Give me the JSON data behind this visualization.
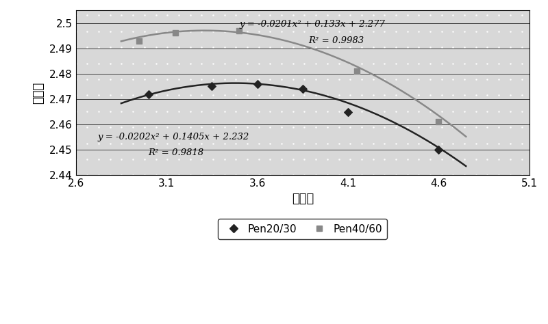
{
  "xlim": [
    2.6,
    5.1
  ],
  "ylim": [
    2.44,
    2.505
  ],
  "yticks": [
    2.44,
    2.45,
    2.46,
    2.47,
    2.48,
    2.49,
    2.5
  ],
  "xticks": [
    2.6,
    3.1,
    3.6,
    4.1,
    4.6,
    5.1
  ],
  "xlabel": "油石比",
  "ylabel": "干密度",
  "pen2030_x": [
    3.0,
    3.35,
    3.6,
    3.85,
    4.1,
    4.6
  ],
  "pen2030_y": [
    2.472,
    2.475,
    2.476,
    2.474,
    2.465,
    2.45
  ],
  "pen4060_x": [
    2.95,
    3.15,
    3.5,
    4.15,
    4.6
  ],
  "pen4060_y": [
    2.493,
    2.496,
    2.497,
    2.481,
    2.461
  ],
  "eq_pen2030": "y = -0.0202x² + 0.1405x + 2.232",
  "r2_pen2030": "R² = 0.9818",
  "eq_pen4060": "y = -0.0201x² + 0.133x + 2.277",
  "r2_pen4060": "R² = 0.9983",
  "color_pen2030": "#222222",
  "color_pen4060": "#888888",
  "bg_color": "#d8d8d8",
  "dot_color": "#ffffff",
  "legend_pen2030": "Pen20/30",
  "legend_pen4060": "Pen40/60",
  "a1": -0.0202,
  "b1": 0.1405,
  "c1": 2.232,
  "a2": -0.0201,
  "b2": 0.133,
  "c2": 2.277,
  "x_curve_start": 2.85,
  "x_curve_end": 4.75
}
